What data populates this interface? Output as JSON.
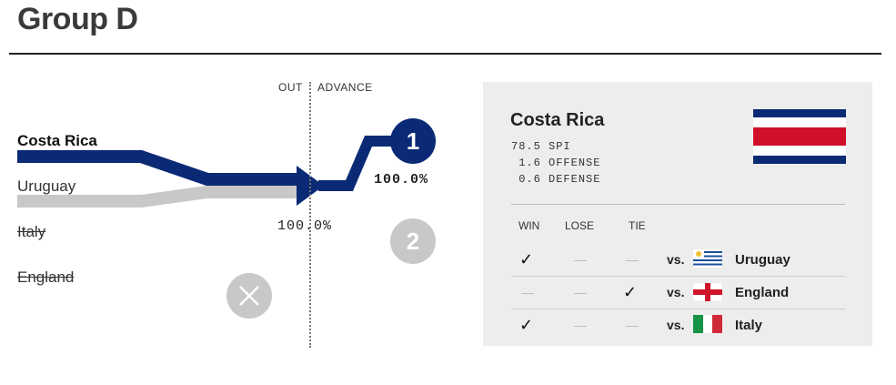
{
  "group_title": "Group D",
  "columns": {
    "out": "OUT",
    "advance": "ADVANCE"
  },
  "teams": [
    {
      "name": "Costa Rica",
      "status": "advancing"
    },
    {
      "name": "Uruguay",
      "status": "in"
    },
    {
      "name": "Italy",
      "status": "eliminated"
    },
    {
      "name": "England",
      "status": "eliminated"
    }
  ],
  "outcomes": {
    "out_pct": "100.0%",
    "first_place_pct": "100.0%",
    "first_place_badge": "1",
    "second_place_badge": "2"
  },
  "colors": {
    "navy": "#0a2a75",
    "gray": "#c8c8c8",
    "panel": "#ededed"
  },
  "panel": {
    "team": "Costa Rica",
    "stats": [
      {
        "value": "78.5",
        "label": "SPI"
      },
      {
        "value": "1.6",
        "label": "OFFENSE"
      },
      {
        "value": "0.6",
        "label": "DEFENSE"
      }
    ],
    "headers": {
      "win": "WIN",
      "lose": "LOSE",
      "tie": "TIE"
    },
    "check_symbol": "✓",
    "dash_symbol": "—",
    "vs_label": "vs.",
    "matches": [
      {
        "result": "win",
        "opponent": "Uruguay",
        "flag": "uruguay-flag-icon"
      },
      {
        "result": "tie",
        "opponent": "England",
        "flag": "england-flag-icon"
      },
      {
        "result": "win",
        "opponent": "Italy",
        "flag": "italy-flag-icon"
      }
    ]
  }
}
